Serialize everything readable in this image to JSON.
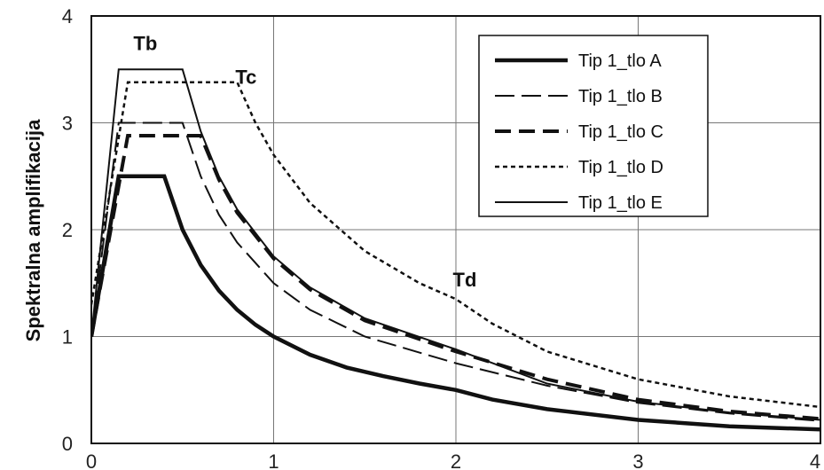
{
  "chart_data": {
    "type": "line",
    "ylabel": "Spektralna amplifikacija",
    "xlabel": "",
    "xlim": [
      0,
      4
    ],
    "ylim": [
      0,
      4
    ],
    "xticks": [
      "0",
      "1",
      "2",
      "3",
      "4"
    ],
    "yticks": [
      "0",
      "1",
      "2",
      "3",
      "4"
    ],
    "grid": true,
    "legend_position": "top-right",
    "annotations": [
      {
        "text": "Tb",
        "x": 0.15,
        "y": 3.78
      },
      {
        "text": "Tc",
        "x": 0.8,
        "y": 3.5
      },
      {
        "text": "Td",
        "x": 2.0,
        "y": 1.42
      }
    ],
    "series": [
      {
        "name": "Tip 1_tlo A",
        "style": "solid-thick",
        "x": [
          0,
          0.15,
          0.4,
          0.5,
          0.6,
          0.7,
          0.8,
          0.9,
          1.0,
          1.2,
          1.4,
          1.6,
          1.8,
          2.0,
          2.2,
          2.5,
          3.0,
          3.5,
          4.0
        ],
        "y": [
          1.0,
          2.5,
          2.5,
          2.0,
          1.67,
          1.43,
          1.25,
          1.11,
          1.0,
          0.83,
          0.71,
          0.63,
          0.56,
          0.5,
          0.41,
          0.32,
          0.22,
          0.16,
          0.13
        ]
      },
      {
        "name": "Tip 1_tlo B",
        "style": "long-dash",
        "x": [
          0,
          0.15,
          0.5,
          0.6,
          0.7,
          0.8,
          1.0,
          1.2,
          1.5,
          2.0,
          2.5,
          3.0,
          3.5,
          4.0
        ],
        "y": [
          1.0,
          3.0,
          3.0,
          2.5,
          2.14,
          1.88,
          1.5,
          1.25,
          1.0,
          0.75,
          0.54,
          0.38,
          0.28,
          0.21
        ]
      },
      {
        "name": "Tip 1_tlo C",
        "style": "dash-thick",
        "x": [
          0,
          0.2,
          0.6,
          0.7,
          0.8,
          1.0,
          1.2,
          1.5,
          2.0,
          2.5,
          3.0,
          3.5,
          4.0
        ],
        "y": [
          1.0,
          2.88,
          2.88,
          2.47,
          2.16,
          1.73,
          1.44,
          1.15,
          0.86,
          0.6,
          0.41,
          0.3,
          0.23
        ]
      },
      {
        "name": "Tip 1_tlo D",
        "style": "dotted",
        "x": [
          0,
          0.2,
          0.8,
          0.9,
          1.0,
          1.2,
          1.5,
          1.8,
          2.0,
          2.2,
          2.5,
          3.0,
          3.5,
          4.0
        ],
        "y": [
          1.3,
          3.38,
          3.38,
          3.0,
          2.7,
          2.25,
          1.8,
          1.5,
          1.35,
          1.12,
          0.86,
          0.6,
          0.44,
          0.34
        ]
      },
      {
        "name": "Tip 1_tlo E",
        "style": "solid-thin",
        "x": [
          0,
          0.15,
          0.5,
          0.6,
          0.7,
          0.8,
          1.0,
          1.2,
          1.5,
          2.0,
          2.5,
          3.0,
          3.5,
          4.0
        ],
        "y": [
          1.0,
          3.5,
          3.5,
          2.92,
          2.5,
          2.19,
          1.75,
          1.46,
          1.17,
          0.88,
          0.56,
          0.39,
          0.29,
          0.22
        ]
      }
    ]
  }
}
